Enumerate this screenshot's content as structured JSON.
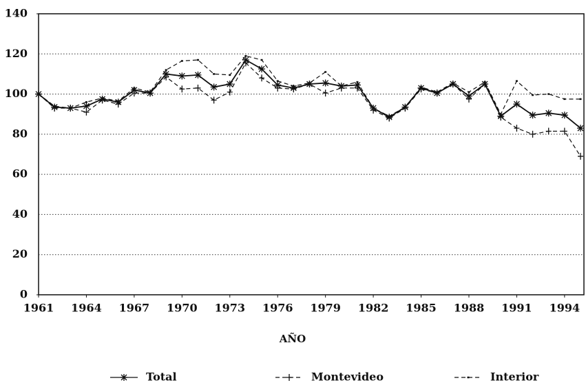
{
  "chart_data": {
    "type": "line",
    "xlabel": "AÑO",
    "x": [
      1961,
      1962,
      1963,
      1964,
      1965,
      1966,
      1967,
      1968,
      1969,
      1970,
      1971,
      1972,
      1973,
      1974,
      1975,
      1976,
      1977,
      1978,
      1979,
      1980,
      1981,
      1982,
      1983,
      1984,
      1985,
      1986,
      1987,
      1988,
      1989,
      1990,
      1991,
      1992,
      1993,
      1994,
      1995
    ],
    "xlim": [
      1961,
      1995
    ],
    "xticks": [
      1961,
      1964,
      1967,
      1970,
      1973,
      1976,
      1979,
      1982,
      1985,
      1988,
      1991,
      1994
    ],
    "ylim": [
      0,
      140
    ],
    "yticks": [
      0,
      20,
      40,
      60,
      80,
      100,
      120,
      140
    ],
    "grid": true,
    "legend": "bottom",
    "series": [
      {
        "name": "Total",
        "color": "#111111",
        "dash": "solid",
        "marker": "asterisk",
        "values": [
          100,
          93.5,
          93,
          94,
          97.5,
          96,
          102,
          100.5,
          110,
          109,
          109.5,
          103.5,
          105,
          117,
          112.5,
          104.5,
          103,
          105,
          105.5,
          104,
          104.5,
          93,
          88.5,
          93.5,
          103,
          100.5,
          105,
          99,
          105,
          89,
          95,
          89.5,
          90.5,
          89.5,
          83
        ]
      },
      {
        "name": "Montevideo",
        "color": "#111111",
        "dash": "dashed",
        "marker": "plus",
        "values": [
          100,
          93,
          93,
          91,
          97,
          95,
          100.5,
          100.5,
          108.5,
          102.5,
          103,
          97,
          101,
          115.5,
          108,
          103,
          102.5,
          105,
          100.5,
          103,
          103,
          92,
          88,
          93,
          102.5,
          100.5,
          105,
          97.5,
          105,
          88.5,
          83,
          80,
          81.5,
          81.5,
          69
        ]
      },
      {
        "name": "Interior",
        "color": "#111111",
        "dash": "dashed",
        "marker": "dot",
        "values": [
          100,
          94,
          93,
          96,
          98,
          96.5,
          103,
          101,
          112,
          116.5,
          117,
          110,
          109.5,
          119,
          117,
          106.5,
          104,
          105.5,
          111,
          104,
          106,
          93,
          89,
          93.5,
          103.5,
          101,
          105.5,
          101,
          106,
          90,
          106.5,
          99.5,
          100,
          97.5,
          97.5
        ]
      }
    ]
  }
}
